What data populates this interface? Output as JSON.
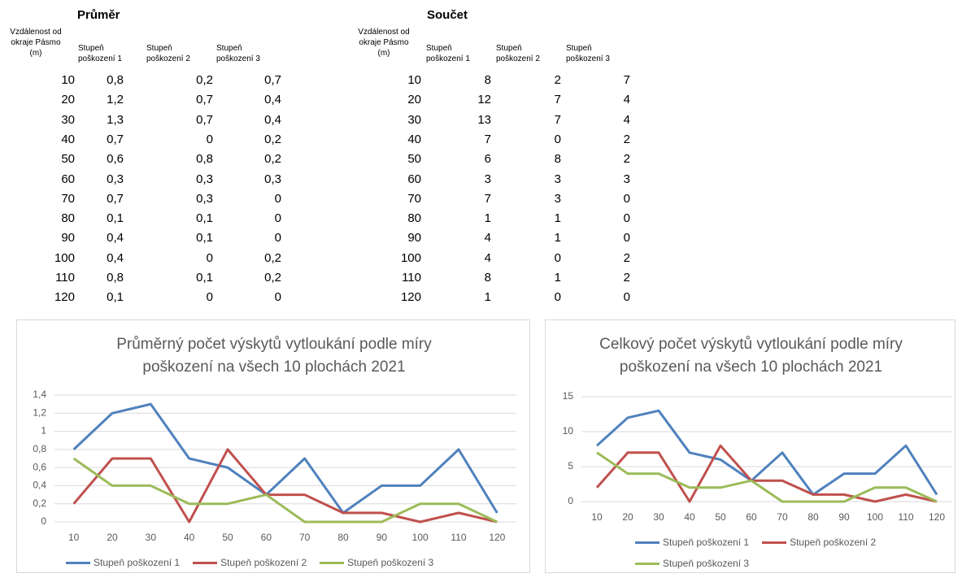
{
  "tables": [
    {
      "title": "Průměr",
      "header": [
        "Vzdálenost od okraje Pásmo (m)",
        "Stupeň poškození 1",
        "Stupeň poškození 2",
        "Stupeň poškození 3"
      ],
      "rows": [
        [
          "10",
          "0,8",
          "0,2",
          "0,7"
        ],
        [
          "20",
          "1,2",
          "0,7",
          "0,4"
        ],
        [
          "30",
          "1,3",
          "0,7",
          "0,4"
        ],
        [
          "40",
          "0,7",
          "0",
          "0,2"
        ],
        [
          "50",
          "0,6",
          "0,8",
          "0,2"
        ],
        [
          "60",
          "0,3",
          "0,3",
          "0,3"
        ],
        [
          "70",
          "0,7",
          "0,3",
          "0"
        ],
        [
          "80",
          "0,1",
          "0,1",
          "0"
        ],
        [
          "90",
          "0,4",
          "0,1",
          "0"
        ],
        [
          "100",
          "0,4",
          "0",
          "0,2"
        ],
        [
          "110",
          "0,8",
          "0,1",
          "0,2"
        ],
        [
          "120",
          "0,1",
          "0",
          "0"
        ]
      ]
    },
    {
      "title": "Součet",
      "header": [
        "Vzdálenost od okraje Pásmo (m)",
        "Stupeň poškození 1",
        "Stupeň poškození 2",
        "Stupeň poškození 3"
      ],
      "rows": [
        [
          "10",
          "8",
          "2",
          "7"
        ],
        [
          "20",
          "12",
          "7",
          "4"
        ],
        [
          "30",
          "13",
          "7",
          "4"
        ],
        [
          "40",
          "7",
          "0",
          "2"
        ],
        [
          "50",
          "6",
          "8",
          "2"
        ],
        [
          "60",
          "3",
          "3",
          "3"
        ],
        [
          "70",
          "7",
          "3",
          "0"
        ],
        [
          "80",
          "1",
          "1",
          "0"
        ],
        [
          "90",
          "4",
          "1",
          "0"
        ],
        [
          "100",
          "4",
          "0",
          "2"
        ],
        [
          "110",
          "8",
          "1",
          "2"
        ],
        [
          "120",
          "1",
          "0",
          "0"
        ]
      ]
    }
  ],
  "chart_data": [
    {
      "type": "line",
      "title": "Průměrný počet výskytů vytloukání podle míry poškození na všech 10 plochách 2021",
      "categories": [
        "10",
        "20",
        "30",
        "40",
        "50",
        "60",
        "70",
        "80",
        "90",
        "100",
        "110",
        "120"
      ],
      "series": [
        {
          "name": "Stupeň poškození 1",
          "color": "#4f81bd",
          "values": [
            0.8,
            1.2,
            1.3,
            0.7,
            0.6,
            0.3,
            0.7,
            0.1,
            0.4,
            0.4,
            0.8,
            0.1
          ]
        },
        {
          "name": "Stupeň poškození 2",
          "color": "#c0504d",
          "values": [
            0.2,
            0.7,
            0.7,
            0,
            0.8,
            0.3,
            0.3,
            0.1,
            0.1,
            0,
            0.1,
            0
          ]
        },
        {
          "name": "Stupeň poškození 3",
          "color": "#9bbb59",
          "values": [
            0.7,
            0.4,
            0.4,
            0.2,
            0.2,
            0.3,
            0,
            0,
            0,
            0.2,
            0.2,
            0
          ]
        }
      ],
      "ylim": [
        0,
        1.4
      ],
      "yticks": [
        0,
        {
          "value": 0.2,
          "label": "0,2"
        },
        {
          "value": 0.4,
          "label": "0,4"
        },
        {
          "value": 0.6,
          "label": "0,6"
        },
        {
          "value": 0.8,
          "label": "0,8"
        },
        1,
        {
          "value": 1.2,
          "label": "1,2"
        },
        {
          "value": 1.4,
          "label": "1,4"
        }
      ],
      "grid": true,
      "legend": "bottom"
    },
    {
      "type": "line",
      "title": "Celkový počet výskytů vytloukání podle míry poškození na všech 10 plochách 2021",
      "categories": [
        "10",
        "20",
        "30",
        "40",
        "50",
        "60",
        "70",
        "80",
        "90",
        "100",
        "110",
        "120"
      ],
      "series": [
        {
          "name": "Stupeň poškození 1",
          "color": "#4f81bd",
          "values": [
            8,
            12,
            13,
            7,
            6,
            3,
            7,
            1,
            4,
            4,
            8,
            1
          ]
        },
        {
          "name": "Stupeň poškození 2",
          "color": "#c0504d",
          "values": [
            2,
            7,
            7,
            0,
            8,
            3,
            3,
            1,
            1,
            0,
            1,
            0
          ]
        },
        {
          "name": "Stupeň poškození 3",
          "color": "#9bbb59",
          "values": [
            7,
            4,
            4,
            2,
            2,
            3,
            0,
            0,
            0,
            2,
            2,
            0
          ]
        }
      ],
      "ylim": [
        0,
        15
      ],
      "yticks": [
        0,
        5,
        10,
        15
      ],
      "grid": true,
      "legend": "bottom"
    }
  ]
}
